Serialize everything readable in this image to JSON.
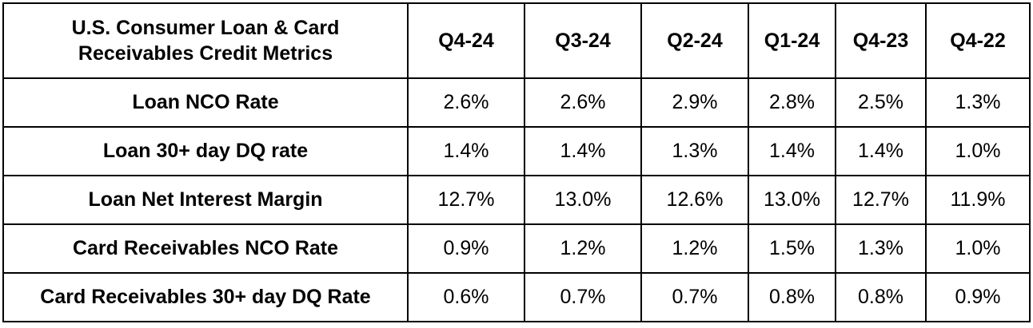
{
  "chart_data": {
    "type": "table",
    "title": "U.S. Consumer Loan & Card Receivables Credit Metrics",
    "columns": [
      "Q4-24",
      "Q3-24",
      "Q2-24",
      "Q1-24",
      "Q4-23",
      "Q4-22"
    ],
    "rows": [
      {
        "label": "Loan NCO Rate",
        "values": [
          "2.6%",
          "2.6%",
          "2.9%",
          "2.8%",
          "2.5%",
          "1.3%"
        ]
      },
      {
        "label": "Loan 30+ day DQ rate",
        "values": [
          "1.4%",
          "1.4%",
          "1.3%",
          "1.4%",
          "1.4%",
          "1.0%"
        ]
      },
      {
        "label": "Loan Net Interest Margin",
        "values": [
          "12.7%",
          "13.0%",
          "12.6%",
          "13.0%",
          "12.7%",
          "11.9%"
        ]
      },
      {
        "label": "Card Receivables NCO Rate",
        "values": [
          "0.9%",
          "1.2%",
          "1.2%",
          "1.5%",
          "1.3%",
          "1.0%"
        ]
      },
      {
        "label": "Card Receivables 30+ day DQ Rate",
        "values": [
          "0.6%",
          "0.7%",
          "0.7%",
          "0.8%",
          "0.8%",
          "0.9%"
        ]
      }
    ]
  }
}
